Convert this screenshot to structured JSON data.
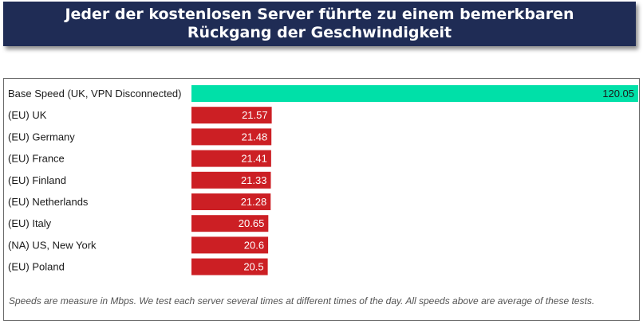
{
  "header": {
    "title": "Jeder der kostenlosen Server führte zu einem bemerkbaren Rückgang der Geschwindigkeit"
  },
  "colors": {
    "banner_bg": "#1f2c55",
    "base_bar": "#00e0a8",
    "server_bar": "#cc1f24"
  },
  "chart_data": {
    "type": "bar",
    "orientation": "horizontal",
    "categories": [
      "Base Speed (UK, VPN Disconnected)",
      "(EU) UK",
      "(EU) Germany",
      "(EU) France",
      "(EU) Finland",
      "(EU) Netherlands",
      "(EU) Italy",
      "(NA) US, New York",
      "(EU) Poland"
    ],
    "values": [
      120.05,
      21.57,
      21.48,
      21.41,
      21.33,
      21.28,
      20.65,
      20.6,
      20.5
    ],
    "value_labels": [
      "120.05",
      "21.57",
      "21.48",
      "21.41",
      "21.33",
      "21.28",
      "20.65",
      "20.6",
      "20.5"
    ],
    "title": "",
    "xlabel": "",
    "ylabel": "",
    "xlim": [
      0,
      120.05
    ],
    "grid": false
  },
  "footnote": "Speeds are measure in Mbps. We test each server several times at different times of the day. All speeds above are average of these tests."
}
